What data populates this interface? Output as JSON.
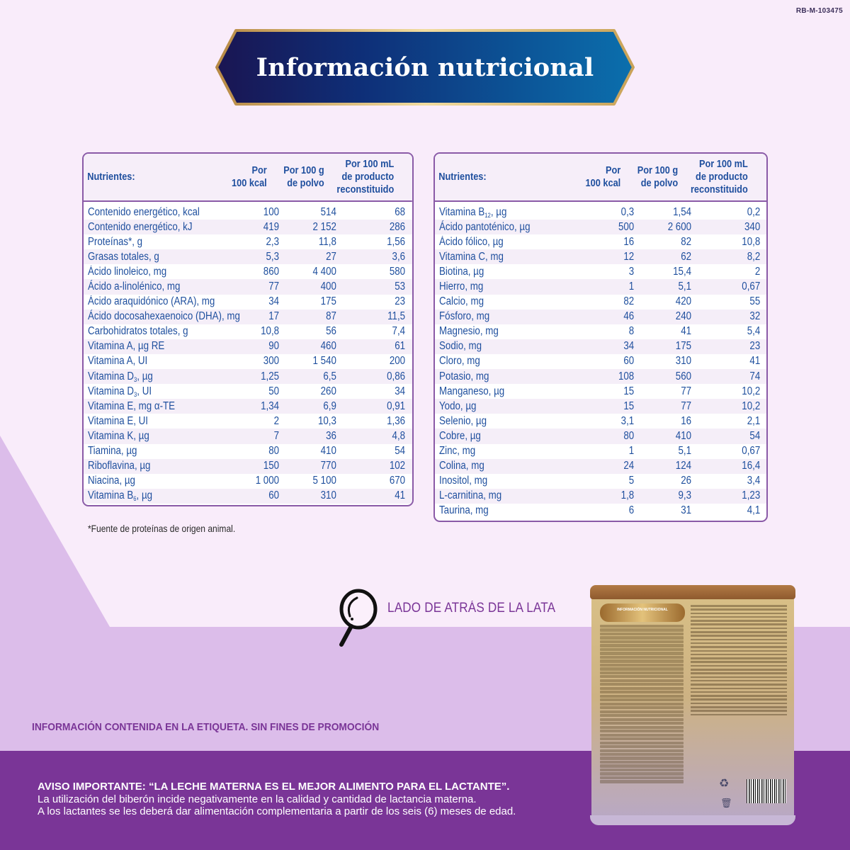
{
  "registration_code": "RB-M-103475",
  "title": "Información nutricional",
  "colors": {
    "background": "#f9ecfa",
    "lilac_band": "#dcbdea",
    "purple_band": "#7a3597",
    "table_text": "#1f4f9e",
    "table_border": "#8a5aa7",
    "banner_dark": "#1a1552",
    "banner_light": "#0b6fad",
    "banner_gold": "#c9a258"
  },
  "table_headers": {
    "nutrient": "Nutrientes:",
    "per_100kcal_line1": "Por",
    "per_100kcal_line2": "100 kcal",
    "per_100g_line1": "Por 100 g",
    "per_100g_line2": "de polvo",
    "per_100ml_line1": "Por 100 mL",
    "per_100ml_line2": "de producto",
    "per_100ml_line3": "reconstituido"
  },
  "left_table": {
    "rows": [
      {
        "name": "Contenido energético, kcal",
        "kcal": "100",
        "g": "514",
        "ml": "68"
      },
      {
        "name": "Contenido energético, kJ",
        "kcal": "419",
        "g": "2 152",
        "ml": "286"
      },
      {
        "name": "Proteínas*, g",
        "kcal": "2,3",
        "g": "11,8",
        "ml": "1,56"
      },
      {
        "name": "Grasas totales, g",
        "kcal": "5,3",
        "g": "27",
        "ml": "3,6"
      },
      {
        "name": "Ácido linoleico, mg",
        "kcal": "860",
        "g": "4 400",
        "ml": "580"
      },
      {
        "name": "Ácido a-linolénico, mg",
        "kcal": "77",
        "g": "400",
        "ml": "53"
      },
      {
        "name": "Ácido araquidónico (ARA), mg",
        "kcal": "34",
        "g": "175",
        "ml": "23"
      },
      {
        "name": "Ácido docosahexaenoico (DHA), mg",
        "kcal": "17",
        "g": "87",
        "ml": "11,5"
      },
      {
        "name": "Carbohidratos totales, g",
        "kcal": "10,8",
        "g": "56",
        "ml": "7,4"
      },
      {
        "name": "Vitamina A, µg RE",
        "kcal": "90",
        "g": "460",
        "ml": "61"
      },
      {
        "name": "Vitamina A, UI",
        "kcal": "300",
        "g": "1 540",
        "ml": "200"
      },
      {
        "name": "Vitamina D",
        "sub": "3",
        "unit": ", µg",
        "kcal": "1,25",
        "g": "6,5",
        "ml": "0,86"
      },
      {
        "name": "Vitamina D",
        "sub": "3",
        "unit": ", UI",
        "kcal": "50",
        "g": "260",
        "ml": "34"
      },
      {
        "name": "Vitamina E, mg α-TE",
        "kcal": "1,34",
        "g": "6,9",
        "ml": "0,91"
      },
      {
        "name": "Vitamina E, UI",
        "kcal": "2",
        "g": "10,3",
        "ml": "1,36"
      },
      {
        "name": "Vitamina K, µg",
        "kcal": "7",
        "g": "36",
        "ml": "4,8"
      },
      {
        "name": "Tiamina, µg",
        "kcal": "80",
        "g": "410",
        "ml": "54"
      },
      {
        "name": "Riboflavina, µg",
        "kcal": "150",
        "g": "770",
        "ml": "102"
      },
      {
        "name": "Niacina, µg",
        "kcal": "1 000",
        "g": "5 100",
        "ml": "670"
      },
      {
        "name": "Vitamina B",
        "sub": "6",
        "unit": ", µg",
        "kcal": "60",
        "g": "310",
        "ml": "41"
      }
    ]
  },
  "right_table": {
    "rows": [
      {
        "name": "Vitamina B",
        "sub": "12",
        "unit": ", µg",
        "kcal": "0,3",
        "g": "1,54",
        "ml": "0,2"
      },
      {
        "name": "Ácido pantoténico, µg",
        "kcal": "500",
        "g": "2 600",
        "ml": "340"
      },
      {
        "name": "Ácido fólico, µg",
        "kcal": "16",
        "g": "82",
        "ml": "10,8"
      },
      {
        "name": "Vitamina C, mg",
        "kcal": "12",
        "g": "62",
        "ml": "8,2"
      },
      {
        "name": "Biotina, µg",
        "kcal": "3",
        "g": "15,4",
        "ml": "2"
      },
      {
        "name": "Hierro, mg",
        "kcal": "1",
        "g": "5,1",
        "ml": "0,67"
      },
      {
        "name": "Calcio, mg",
        "kcal": "82",
        "g": "420",
        "ml": "55"
      },
      {
        "name": "Fósforo, mg",
        "kcal": "46",
        "g": "240",
        "ml": "32"
      },
      {
        "name": "Magnesio, mg",
        "kcal": "8",
        "g": "41",
        "ml": "5,4"
      },
      {
        "name": "Sodio, mg",
        "kcal": "34",
        "g": "175",
        "ml": "23"
      },
      {
        "name": "Cloro, mg",
        "kcal": "60",
        "g": "310",
        "ml": "41"
      },
      {
        "name": "Potasio, mg",
        "kcal": "108",
        "g": "560",
        "ml": "74"
      },
      {
        "name": "Manganeso, µg",
        "kcal": "15",
        "g": "77",
        "ml": "10,2"
      },
      {
        "name": "Yodo, µg",
        "kcal": "15",
        "g": "77",
        "ml": "10,2"
      },
      {
        "name": "Selenio, µg",
        "kcal": "3,1",
        "g": "16",
        "ml": "2,1"
      },
      {
        "name": "Cobre, µg",
        "kcal": "80",
        "g": "410",
        "ml": "54"
      },
      {
        "name": "Zinc, mg",
        "kcal": "1",
        "g": "5,1",
        "ml": "0,67"
      },
      {
        "name": "Colina, mg",
        "kcal": "24",
        "g": "124",
        "ml": "16,4"
      },
      {
        "name": "Inositol, mg",
        "kcal": "5",
        "g": "26",
        "ml": "3,4"
      },
      {
        "name": "L-carnitina, mg",
        "kcal": "1,8",
        "g": "9,3",
        "ml": "1,23"
      },
      {
        "name": "Taurina, mg",
        "kcal": "6",
        "g": "31",
        "ml": "4,1"
      }
    ]
  },
  "footnote": "*Fuente de proteínas de origen animal.",
  "back_of_can": {
    "icon": "magnifier-icon",
    "label": "LADO DE ATRÁS DE LA LATA",
    "panel_title": "INFORMACIÓN NUTRICIONAL"
  },
  "disclaimer": "INFORMACIÓN CONTENIDA EN LA ETIQUETA. SIN FINES DE PROMOCIÓN",
  "warning": {
    "title": "AVISO IMPORTANTE: “LA LECHE MATERNA ES EL MEJOR ALIMENTO PARA EL LACTANTE”.",
    "line1": "La utilización del biberón incide negativamente en la calidad y cantidad de lactancia materna.",
    "line2": "A los lactantes se les deberá dar alimentación complementaria a partir de los seis (6) meses de edad."
  }
}
